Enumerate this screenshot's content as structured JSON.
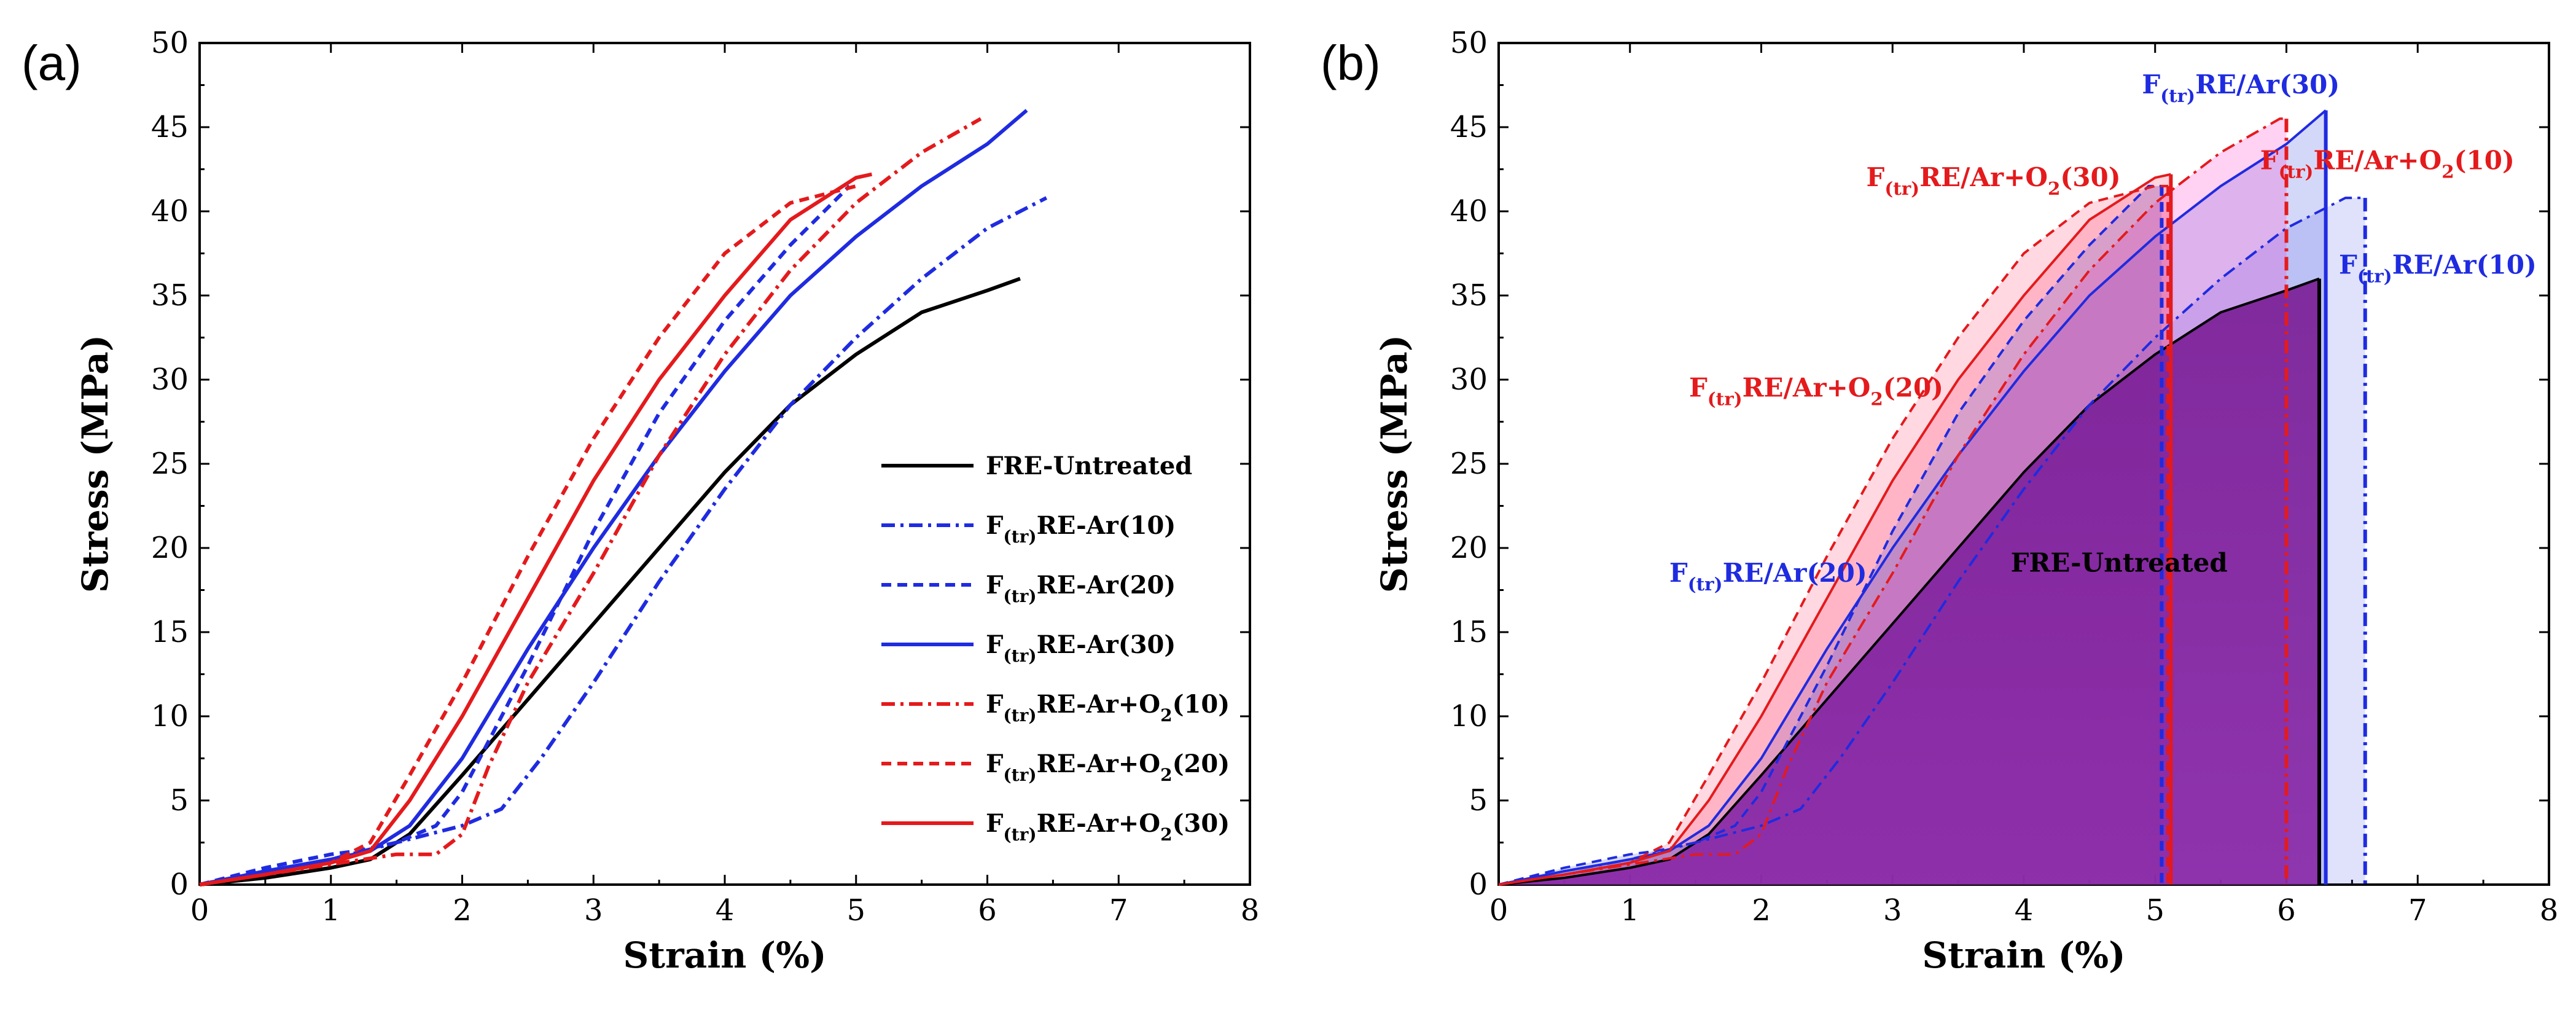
{
  "chart_data": [
    {
      "panel": "(a)",
      "type": "line",
      "xlabel": "Strain (%)",
      "ylabel": "Stress (MPa)",
      "xlim": [
        0,
        8
      ],
      "ylim": [
        0,
        50
      ],
      "xticks": [
        "0",
        "1",
        "2",
        "3",
        "4",
        "5",
        "6",
        "7",
        "8"
      ],
      "yticks": [
        "0",
        "5",
        "10",
        "15",
        "20",
        "25",
        "30",
        "35",
        "40",
        "45",
        "50"
      ],
      "legend_position": "lower-right",
      "series": [
        {
          "name": "FRE-Untreated",
          "name_parts": [
            "FRE-Untreated",
            "",
            "",
            "",
            ""
          ],
          "color": "#000000",
          "dash": "solid",
          "end": 6.25,
          "x": [
            0,
            0.5,
            1.0,
            1.3,
            1.6,
            2.0,
            2.5,
            3.0,
            3.5,
            4.0,
            4.5,
            5.0,
            5.5,
            6.0,
            6.25
          ],
          "y": [
            0,
            0.4,
            1.0,
            1.5,
            3.0,
            6.5,
            11.0,
            15.5,
            20.0,
            24.5,
            28.5,
            31.5,
            34.0,
            35.3,
            36.0
          ]
        },
        {
          "name": "F(tr)RE-Ar(10)",
          "name_parts": [
            "F",
            "(tr)",
            "RE-Ar(10)",
            "",
            ""
          ],
          "color": "#1f2be0",
          "dash": "dashdot",
          "end": 6.6,
          "x": [
            0,
            0.5,
            0.8,
            1.0,
            1.5,
            2.0,
            2.3,
            2.6,
            3.0,
            3.5,
            4.0,
            4.5,
            5.0,
            5.5,
            6.0,
            6.45
          ],
          "y": [
            0,
            0.8,
            1.2,
            1.5,
            2.5,
            3.5,
            4.5,
            7.5,
            12.0,
            18.0,
            23.5,
            28.5,
            32.5,
            36.0,
            39.0,
            40.8
          ]
        },
        {
          "name": "F(tr)RE-Ar(20)",
          "name_parts": [
            "F",
            "(tr)",
            "RE-Ar(20)",
            "",
            ""
          ],
          "color": "#1f2be0",
          "dash": "dashed",
          "end": 5.05,
          "x": [
            0,
            0.5,
            1.0,
            1.2,
            1.5,
            1.8,
            2.0,
            2.5,
            3.0,
            3.5,
            4.0,
            4.5,
            4.95
          ],
          "y": [
            0,
            1.0,
            1.8,
            2.0,
            2.5,
            3.5,
            5.5,
            13.0,
            21.0,
            28.0,
            33.5,
            38.0,
            41.5
          ]
        },
        {
          "name": "F(tr)RE-Ar(30)",
          "name_parts": [
            "F",
            "(tr)",
            "RE-Ar(30)",
            "",
            ""
          ],
          "color": "#1f2be0",
          "dash": "solid",
          "end": 6.3,
          "x": [
            0,
            0.5,
            1.0,
            1.3,
            1.6,
            2.0,
            2.5,
            3.0,
            3.5,
            4.0,
            4.5,
            5.0,
            5.5,
            6.0,
            6.3
          ],
          "y": [
            0,
            0.8,
            1.5,
            2.0,
            3.5,
            7.5,
            14.0,
            20.0,
            25.5,
            30.5,
            35.0,
            38.5,
            41.5,
            44.0,
            46.0
          ]
        },
        {
          "name": "F(tr)RE-Ar+O2(10)",
          "name_parts": [
            "F",
            "(tr)",
            "RE-Ar+O",
            "2",
            "(10)"
          ],
          "color": "#e41a1c",
          "dash": "dashdot",
          "end": 6.0,
          "x": [
            0,
            0.5,
            1.0,
            1.5,
            1.8,
            2.0,
            2.2,
            2.5,
            3.0,
            3.5,
            4.0,
            4.5,
            5.0,
            5.5,
            5.95
          ],
          "y": [
            0,
            0.6,
            1.2,
            1.8,
            1.8,
            3.0,
            7.0,
            12.0,
            18.5,
            25.5,
            31.5,
            36.5,
            40.5,
            43.5,
            45.5
          ]
        },
        {
          "name": "F(tr)RE-Ar+O2(20)",
          "name_parts": [
            "F",
            "(tr)",
            "RE-Ar+O",
            "2",
            "(20)"
          ],
          "color": "#e41a1c",
          "dash": "dashed",
          "end": 5.1,
          "x": [
            0,
            0.5,
            1.0,
            1.3,
            1.6,
            2.0,
            2.5,
            3.0,
            3.5,
            4.0,
            4.5,
            5.0
          ],
          "y": [
            0,
            0.6,
            1.3,
            2.5,
            6.5,
            12.0,
            19.5,
            26.5,
            32.5,
            37.5,
            40.5,
            41.5
          ]
        },
        {
          "name": "F(tr)RE-Ar+O2(30)",
          "name_parts": [
            "F",
            "(tr)",
            "RE-Ar+O",
            "2",
            "(30)"
          ],
          "color": "#e41a1c",
          "dash": "solid",
          "end": 5.12,
          "x": [
            0,
            0.5,
            1.0,
            1.3,
            1.6,
            2.0,
            2.5,
            3.0,
            3.5,
            4.0,
            4.5,
            5.0,
            5.12
          ],
          "y": [
            0,
            0.6,
            1.3,
            2.0,
            5.0,
            10.0,
            17.0,
            24.0,
            30.0,
            35.0,
            39.5,
            42.0,
            42.2
          ]
        }
      ]
    },
    {
      "panel": "(b)",
      "type": "area",
      "xlabel": "Strain (%)",
      "ylabel": "Stress (MPa)",
      "xlim": [
        0,
        8
      ],
      "ylim": [
        0,
        50
      ],
      "xticks": [
        "0",
        "1",
        "2",
        "3",
        "4",
        "5",
        "6",
        "7",
        "8"
      ],
      "yticks": [
        "0",
        "5",
        "10",
        "15",
        "20",
        "25",
        "30",
        "35",
        "40",
        "45",
        "50"
      ],
      "note": "Same series as panel (a), each curve closed by a vertical drop at its failure strain and filled.",
      "annotations": [
        {
          "parts": [
            "F",
            "(tr)",
            "RE/Ar(30)",
            "",
            ""
          ],
          "color": "#1f2be0",
          "x": 4.9,
          "y": 47.0
        },
        {
          "parts": [
            "F",
            "(tr)",
            "RE/Ar+O",
            "2",
            "(30)"
          ],
          "color": "#e41a1c",
          "x": 2.8,
          "y": 41.5
        },
        {
          "parts": [
            "F",
            "(tr)",
            "RE/Ar+O",
            "2",
            "(10)"
          ],
          "color": "#e41a1c",
          "x": 5.8,
          "y": 42.5
        },
        {
          "parts": [
            "F",
            "(tr)",
            "RE/Ar(10)",
            "",
            ""
          ],
          "color": "#1f2be0",
          "x": 6.4,
          "y": 36.3
        },
        {
          "parts": [
            "F",
            "(tr)",
            "RE/Ar+O",
            "2",
            "(20)"
          ],
          "color": "#e41a1c",
          "x": 1.45,
          "y": 29.0
        },
        {
          "parts": [
            "F",
            "(tr)",
            "RE/Ar(20)",
            "",
            ""
          ],
          "color": "#1f2be0",
          "x": 1.3,
          "y": 18.0
        },
        {
          "parts": [
            "FRE-Untreated",
            "",
            "",
            "",
            ""
          ],
          "color": "#000000",
          "x": 3.9,
          "y": 18.6
        }
      ]
    }
  ]
}
